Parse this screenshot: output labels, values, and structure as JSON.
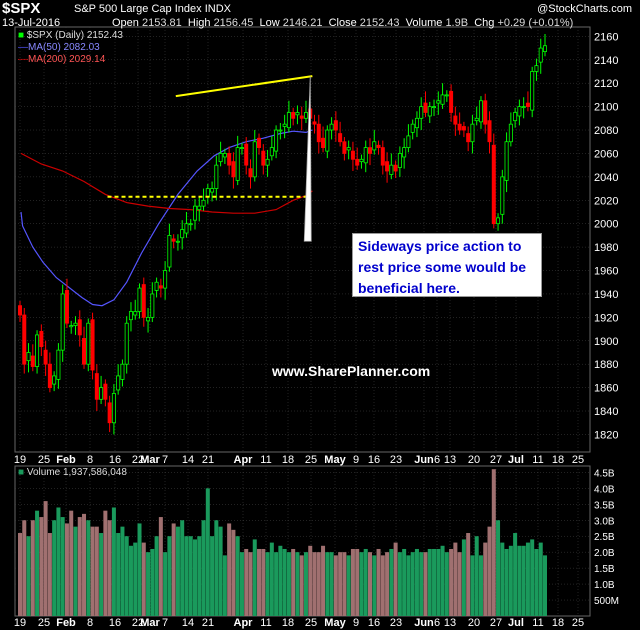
{
  "header": {
    "symbol": "$SPX",
    "name": "S&P 500 Large Cap Index",
    "exchange": "INDX",
    "brand": "@StockCharts.com",
    "date": "13-Jul-2016",
    "open_label": "Open",
    "open": "2153.81",
    "high_label": "High",
    "high": "2156.45",
    "low_label": "Low",
    "low": "2146.21",
    "close_label": "Close",
    "close": "2152.43",
    "volume_label": "Volume",
    "volume": "1.9B",
    "chg_label": "Chg",
    "chg": "+0.29 (+0.01%)"
  },
  "legend": {
    "price": "$SPX (Daily) 2152.43",
    "ma50": "MA(50) 2082.03",
    "ma200": "MA(200) 2029.14",
    "volume": "Volume 1,937,586,048"
  },
  "annotation": {
    "line1": "Sideways price action to",
    "line2": "rest price some would be",
    "line3": "beneficial here."
  },
  "watermark": "www.SharePlanner.com",
  "colors": {
    "up": "#00ff00",
    "down": "#ff0000",
    "up_volume": "#1a9a5c",
    "down_volume": "#a07070",
    "ma50": "#5555ff",
    "ma200": "#cc0000",
    "resistance": "#ffff00",
    "support": "#ffff00",
    "grid": "#444444"
  },
  "chart_data": [
    {
      "type": "candlestick",
      "title": "$SPX (Daily) 2152.43",
      "ylim": [
        1805,
        2168
      ],
      "y_ticks": [
        2160,
        2140,
        2120,
        2100,
        2080,
        2060,
        2040,
        2020,
        2000,
        1980,
        1960,
        1940,
        1920,
        1900,
        1880,
        1860,
        1840,
        1820
      ],
      "x_tick_labels": [
        "19",
        "25",
        "Feb",
        "8",
        "16",
        "22",
        "Mar",
        "7",
        "14",
        "21",
        "Apr",
        "11",
        "18",
        "25",
        "May",
        "9",
        "16",
        "23",
        "Jun",
        "6",
        "13",
        "20",
        "27",
        "Jul",
        "11",
        "18",
        "25"
      ],
      "x_tick_types": [
        "n",
        "n",
        "m",
        "n",
        "n",
        "n",
        "m",
        "n",
        "n",
        "n",
        "m",
        "n",
        "n",
        "n",
        "m",
        "n",
        "n",
        "n",
        "m",
        "n",
        "n",
        "n",
        "n",
        "m",
        "n",
        "n",
        "n"
      ],
      "day_closes": [
        1922,
        1880,
        1890,
        1878,
        1905,
        1895,
        1880,
        1860,
        1870,
        1892,
        1940,
        1915,
        1913,
        1915,
        1905,
        1880,
        1915,
        1875,
        1850,
        1860,
        1850,
        1830,
        1855,
        1870,
        1880,
        1915,
        1925,
        1925,
        1945,
        1920,
        1920,
        1940,
        1950,
        1945,
        1960,
        1990,
        1985,
        1985,
        1995,
        2000,
        2000,
        2015,
        2015,
        2020,
        2030,
        2030,
        2050,
        2060,
        2060,
        2050,
        2040,
        2065,
        2065,
        2050,
        2040,
        2070,
        2065,
        2050,
        2055,
        2065,
        2080,
        2080,
        2085,
        2095,
        2090,
        2095,
        2090,
        2095,
        2090,
        2085,
        2070,
        2065,
        2080,
        2085,
        2080,
        2070,
        2060,
        2065,
        2055,
        2050,
        2055,
        2065,
        2060,
        2070,
        2065,
        2050,
        2045,
        2050,
        2045,
        2060,
        2065,
        2075,
        2085,
        2090,
        2100,
        2095,
        2100,
        2100,
        2105,
        2110,
        2110,
        2095,
        2085,
        2080,
        2080,
        2070,
        2085,
        2090,
        2105,
        2085,
        2070,
        2000,
        2005,
        2040,
        2070,
        2085,
        2095,
        2100,
        2100,
        2100,
        2130,
        2135,
        2150,
        2152
      ],
      "ma50": [
        {
          "x": 0.24,
          "y": 2010
        },
        {
          "x": 0.6,
          "y": 1998
        },
        {
          "x": 3.0,
          "y": 1980
        },
        {
          "x": 5.4,
          "y": 1967
        },
        {
          "x": 8.5,
          "y": 1954
        },
        {
          "x": 14.5,
          "y": 1937
        },
        {
          "x": 17.0,
          "y": 1931
        },
        {
          "x": 19.2,
          "y": 1930
        },
        {
          "x": 22.0,
          "y": 1935
        },
        {
          "x": 25.0,
          "y": 1950
        },
        {
          "x": 28.5,
          "y": 1975
        },
        {
          "x": 32.5,
          "y": 2000
        },
        {
          "x": 37.0,
          "y": 2025
        },
        {
          "x": 41.5,
          "y": 2045
        },
        {
          "x": 45.5,
          "y": 2058
        },
        {
          "x": 49.0,
          "y": 2065
        },
        {
          "x": 53.0,
          "y": 2070
        },
        {
          "x": 57.0,
          "y": 2073
        },
        {
          "x": 61.0,
          "y": 2077
        },
        {
          "x": 64.0,
          "y": 2079
        },
        {
          "x": 67.0,
          "y": 2078
        },
        {
          "x": 68.5,
          "y": 2080
        }
      ],
      "ma200": [
        {
          "x": 0.24,
          "y": 2060
        },
        {
          "x": 5.0,
          "y": 2051
        },
        {
          "x": 10.0,
          "y": 2045
        },
        {
          "x": 15.0,
          "y": 2036
        },
        {
          "x": 20.0,
          "y": 2025
        },
        {
          "x": 25.0,
          "y": 2018
        },
        {
          "x": 30.0,
          "y": 2015
        },
        {
          "x": 35.0,
          "y": 2013
        },
        {
          "x": 40.0,
          "y": 2012
        },
        {
          "x": 45.0,
          "y": 2010
        },
        {
          "x": 50.0,
          "y": 2009
        },
        {
          "x": 55.0,
          "y": 2009
        },
        {
          "x": 60.0,
          "y": 2012
        },
        {
          "x": 64.0,
          "y": 2020
        },
        {
          "x": 67.0,
          "y": 2024
        },
        {
          "x": 68.5,
          "y": 2028
        }
      ],
      "resistance_line": [
        {
          "x": 36.5,
          "y": 2109
        },
        {
          "x": 68.5,
          "y": 2126
        }
      ],
      "support_line": [
        {
          "x": 20.5,
          "y": 2023
        },
        {
          "x": 68.0,
          "y": 2023
        }
      ],
      "annotation_pointer": [
        {
          "x": 62.0,
          "y": 1985
        },
        {
          "x": 68.0,
          "y": 2126
        }
      ]
    },
    {
      "type": "bar",
      "title": "Volume 1,937,586,048",
      "ylim": [
        0,
        4.7
      ],
      "y_ticks": [
        "4.5B",
        "4.0B",
        "3.5B",
        "3.0B",
        "2.5B",
        "2.0B",
        "1.5B",
        "1.0B",
        "500M"
      ],
      "y_tick_values": [
        4.5,
        4.0,
        3.5,
        3.0,
        2.5,
        2.0,
        1.5,
        1.0,
        0.5
      ],
      "x_tick_labels": [
        "19",
        "25",
        "Feb",
        "8",
        "16",
        "22",
        "Mar",
        "7",
        "14",
        "21",
        "Apr",
        "11",
        "18",
        "25",
        "May",
        "9",
        "16",
        "23",
        "Jun",
        "6",
        "13",
        "20",
        "27",
        "Jul",
        "11",
        "18",
        "25"
      ],
      "values": [
        2.6,
        3.0,
        2.5,
        3.0,
        3.3,
        3.1,
        3.6,
        2.6,
        3.0,
        3.4,
        3.1,
        2.9,
        3.3,
        2.8,
        3.1,
        3.2,
        3.0,
        2.8,
        2.8,
        2.6,
        3.3,
        3.0,
        3.4,
        2.6,
        2.8,
        2.5,
        2.2,
        2.3,
        2.9,
        2.3,
        2.0,
        2.1,
        2.5,
        3.1,
        2.0,
        2.5,
        2.9,
        2.8,
        3.0,
        2.5,
        2.5,
        2.4,
        2.5,
        3.0,
        4.0,
        2.5,
        3.0,
        2.8,
        1.9,
        2.9,
        2.7,
        2.5,
        2.0,
        2.1,
        2.0,
        2.4,
        2.1,
        2.1,
        2.0,
        2.3,
        2.0,
        2.2,
        2.1,
        2.0,
        2.1,
        2.0,
        1.9,
        2.0,
        2.2,
        2.0,
        2.0,
        2.2,
        2.0,
        2.0,
        1.9,
        2.0,
        2.0,
        1.9,
        2.1,
        2.1,
        2.0,
        2.1,
        2.0,
        1.9,
        2.1,
        1.9,
        2.0,
        2.1,
        2.3,
        2.0,
        2.1,
        1.9,
        2.0,
        2.1,
        2.0,
        2.0,
        2.1,
        2.1,
        2.1,
        2.2,
        2.0,
        2.1,
        2.3,
        2.0,
        2.4,
        2.6,
        1.9,
        2.5,
        1.9,
        2.3,
        2.8,
        4.6,
        3.0,
        2.3,
        2.1,
        2.2,
        2.6,
        2.2,
        2.2,
        2.3,
        2.4,
        2.1,
        2.3,
        1.9
      ],
      "down_days": [
        0,
        1,
        2,
        3,
        4,
        5,
        6,
        7,
        8,
        9,
        10,
        11,
        12,
        13,
        14,
        15,
        16,
        17,
        18,
        19,
        20,
        21,
        22,
        23,
        24,
        25,
        26,
        27,
        28,
        29,
        30,
        31,
        32,
        33,
        34,
        35,
        36,
        37,
        38,
        39,
        40,
        41,
        42,
        43,
        44,
        45,
        46,
        47,
        48,
        49,
        50,
        51,
        52,
        53,
        54,
        55,
        56,
        57,
        58,
        59,
        60,
        61,
        62,
        63,
        64,
        65,
        66,
        67,
        68,
        69,
        70,
        71,
        72,
        73,
        74,
        75,
        76,
        77,
        78,
        79,
        80,
        81,
        82,
        83,
        84,
        85,
        86,
        87,
        88,
        89,
        90,
        91,
        92,
        93,
        94,
        95,
        96,
        97,
        98,
        99,
        100,
        101,
        102,
        103,
        104,
        105,
        106,
        107,
        108,
        109,
        110,
        111,
        112,
        113,
        114,
        115,
        116,
        117,
        118,
        119,
        120,
        121,
        122,
        123
      ]
    }
  ]
}
